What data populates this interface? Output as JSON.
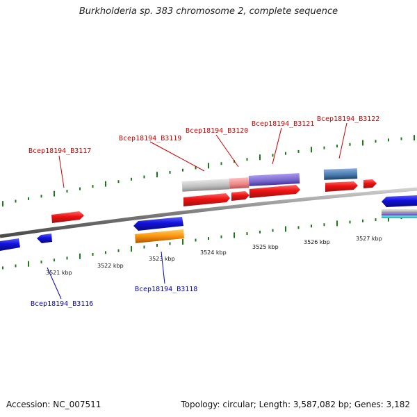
{
  "title": "Burkholderia sp. 383 chromosome 2, complete sequence",
  "footer": {
    "accession": "Accession: NC_007511",
    "summary": "Topology: circular; Length: 3,587,082 bp; Genes: 3,182"
  },
  "colors": {
    "backbone": "#8a8a8a",
    "tick": "#1a7a1a",
    "label_top": "#cc0000",
    "label_bottom": "#0000bb",
    "feature_red": "#ee1111",
    "feature_blue": "#1111dd",
    "feature_orange": "#ff9911",
    "feature_gray": "#bdbdbd",
    "feature_pink": "#ee8888",
    "feature_purple": "#7766cc",
    "feature_steel": "#4477aa",
    "feature_teal": "#22bbbb"
  },
  "scale": {
    "unit": "kbp",
    "ticks": [
      {
        "kbp": 3521,
        "label": "3521 kbp"
      },
      {
        "kbp": 3522,
        "label": "3522 kbp"
      },
      {
        "kbp": 3523,
        "label": "3523 kbp"
      },
      {
        "kbp": 3524,
        "label": "3524 kbp"
      },
      {
        "kbp": 3525,
        "label": "3525 kbp"
      },
      {
        "kbp": 3526,
        "label": "3526 kbp"
      },
      {
        "kbp": 3527,
        "label": "3527 kbp"
      }
    ]
  },
  "labels": {
    "top": [
      {
        "text": "Bcep18194_B3117"
      },
      {
        "text": "Bcep18194_B3119"
      },
      {
        "text": "Bcep18194_B3120"
      },
      {
        "text": "Bcep18194_B3121"
      },
      {
        "text": "Bcep18194_B3122"
      }
    ],
    "bottom": [
      {
        "text": "Bcep18194_B3116"
      },
      {
        "text": "Bcep18194_B3118"
      }
    ]
  }
}
